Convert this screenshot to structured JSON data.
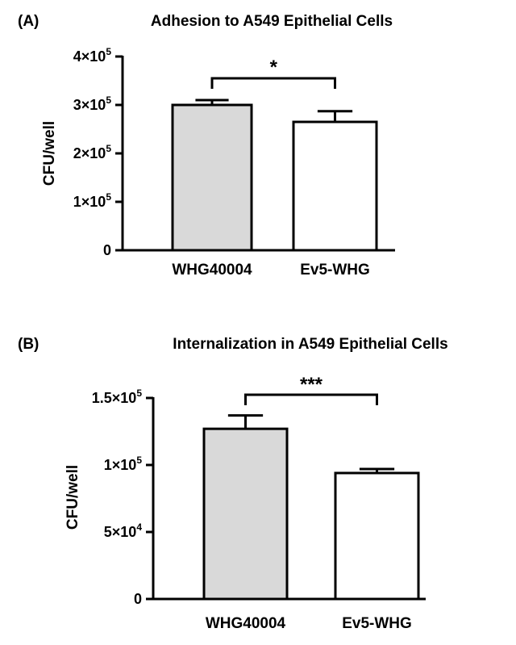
{
  "chart_data": [
    {
      "panel_label": "(A)",
      "type": "bar",
      "title": "Adhesion to A549 Epithelial Cells",
      "xlabel": "",
      "ylabel": "CFU/well",
      "ylim": [
        0,
        400000
      ],
      "yticks": [
        {
          "value": 0,
          "base": "0",
          "exp": ""
        },
        {
          "value": 100000,
          "base": "1×10",
          "exp": "5"
        },
        {
          "value": 200000,
          "base": "2×10",
          "exp": "5"
        },
        {
          "value": 300000,
          "base": "3×10",
          "exp": "5"
        },
        {
          "value": 400000,
          "base": "4×10",
          "exp": "5"
        }
      ],
      "categories": [
        "WHG40004",
        "Ev5-WHG"
      ],
      "values": [
        300000,
        265000
      ],
      "error": [
        10000,
        22000
      ],
      "bar_colors": [
        "#d9d9d9",
        "#ffffff"
      ],
      "significance": {
        "from": 0,
        "to": 1,
        "label": "*"
      }
    },
    {
      "panel_label": "(B)",
      "type": "bar",
      "title": "Internalization in A549 Epithelial Cells",
      "xlabel": "",
      "ylabel": "CFU/well",
      "ylim": [
        0,
        150000
      ],
      "yticks": [
        {
          "value": 0,
          "base": "0",
          "exp": ""
        },
        {
          "value": 50000,
          "base": "5×10",
          "exp": "4"
        },
        {
          "value": 100000,
          "base": "1×10",
          "exp": "5"
        },
        {
          "value": 150000,
          "base": "1.5×10",
          "exp": "5"
        }
      ],
      "categories": [
        "WHG40004",
        "Ev5-WHG"
      ],
      "values": [
        127000,
        94000
      ],
      "error": [
        10000,
        3000
      ],
      "bar_colors": [
        "#d9d9d9",
        "#ffffff"
      ],
      "significance": {
        "from": 0,
        "to": 1,
        "label": "***"
      }
    }
  ]
}
